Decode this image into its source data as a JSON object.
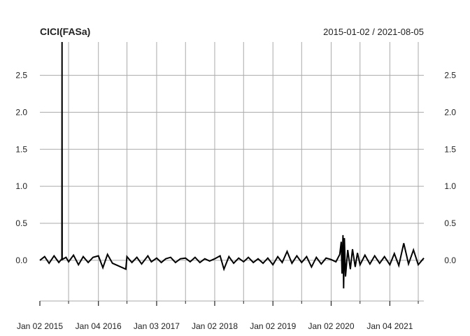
{
  "chart_data": {
    "type": "line",
    "title": "CICI(FASa)",
    "date_range": "2015-01-02 / 2021-08-05",
    "x_start": "2015-01-02",
    "x_end": "2021-08-05",
    "ylim": [
      -0.55,
      2.95
    ],
    "y_ticks": [
      0.0,
      0.5,
      1.0,
      1.5,
      2.0,
      2.5
    ],
    "y_tick_labels": [
      "0.0",
      "0.5",
      "1.0",
      "1.5",
      "2.0",
      "2.5"
    ],
    "x_tick_labels": [
      "Jan 02 2015",
      "Jan 04 2016",
      "Jan 03 2017",
      "Jan 02 2018",
      "Jan 02 2019",
      "Jan 02 2020",
      "Jan 04 2021"
    ],
    "x_tick_dates": [
      "2015-01-02",
      "2016-01-04",
      "2017-01-03",
      "2018-01-02",
      "2019-01-02",
      "2020-01-02",
      "2021-01-04"
    ],
    "x_minor_dates": [
      "2015-07-01",
      "2016-07-01",
      "2017-07-03",
      "2018-07-02",
      "2019-07-01",
      "2020-07-01",
      "2021-07-01"
    ],
    "grid": true,
    "colors": {
      "series": "#000000",
      "grid": "#aaaaaa",
      "text": "#222222"
    },
    "series": [
      {
        "x": [
          "2015-01-02",
          "2015-02-01",
          "2015-03-01",
          "2015-04-01",
          "2015-05-01",
          "2015-05-20",
          "2015-05-21",
          "2015-05-22",
          "2015-06-15",
          "2015-07-01",
          "2015-08-01",
          "2015-09-01",
          "2015-10-01",
          "2015-11-01",
          "2015-12-01",
          "2016-01-04",
          "2016-02-01",
          "2016-03-01",
          "2016-04-01",
          "2016-06-24",
          "2016-07-01",
          "2016-08-01",
          "2016-09-01",
          "2016-10-01",
          "2016-11-09",
          "2016-12-01",
          "2017-01-03",
          "2017-02-01",
          "2017-03-01",
          "2017-04-01",
          "2017-05-01",
          "2017-06-01",
          "2017-07-03",
          "2017-08-01",
          "2017-09-01",
          "2017-10-01",
          "2017-11-01",
          "2017-12-01",
          "2018-01-02",
          "2018-02-05",
          "2018-03-01",
          "2018-04-01",
          "2018-05-01",
          "2018-06-01",
          "2018-07-02",
          "2018-08-01",
          "2018-09-01",
          "2018-10-01",
          "2018-11-01",
          "2018-12-01",
          "2019-01-02",
          "2019-02-01",
          "2019-03-01",
          "2019-04-01",
          "2019-05-01",
          "2019-06-01",
          "2019-07-01",
          "2019-08-01",
          "2019-09-01",
          "2019-10-01",
          "2019-11-01",
          "2019-12-01",
          "2020-01-02",
          "2020-02-01",
          "2020-02-25",
          "2020-03-05",
          "2020-03-10",
          "2020-03-16",
          "2020-03-20",
          "2020-03-25",
          "2020-04-01",
          "2020-04-15",
          "2020-05-01",
          "2020-05-15",
          "2020-06-01",
          "2020-06-15",
          "2020-07-01",
          "2020-08-01",
          "2020-09-01",
          "2020-10-01",
          "2020-11-01",
          "2020-12-01",
          "2021-01-04",
          "2021-02-01",
          "2021-03-01",
          "2021-04-01",
          "2021-05-01",
          "2021-06-01",
          "2021-07-01",
          "2021-08-05"
        ],
        "y": [
          0.0,
          0.05,
          -0.04,
          0.06,
          -0.03,
          0.02,
          2.95,
          0.01,
          0.04,
          -0.02,
          0.07,
          -0.06,
          0.05,
          -0.03,
          0.04,
          0.06,
          -0.1,
          0.08,
          -0.04,
          -0.12,
          0.05,
          -0.03,
          0.04,
          -0.05,
          0.06,
          -0.02,
          0.03,
          -0.03,
          0.02,
          0.04,
          -0.03,
          0.02,
          0.03,
          -0.02,
          0.04,
          -0.03,
          0.02,
          -0.01,
          0.02,
          0.06,
          -0.12,
          0.05,
          -0.04,
          0.03,
          -0.02,
          0.04,
          -0.03,
          0.02,
          -0.04,
          0.03,
          -0.06,
          0.05,
          -0.03,
          0.12,
          -0.04,
          0.06,
          -0.03,
          0.05,
          -0.09,
          0.04,
          -0.05,
          0.03,
          0.01,
          -0.02,
          0.08,
          0.25,
          -0.18,
          0.34,
          -0.38,
          0.3,
          -0.22,
          0.14,
          -0.12,
          0.15,
          -0.09,
          0.1,
          -0.06,
          0.07,
          -0.05,
          0.06,
          -0.04,
          0.05,
          -0.06,
          0.09,
          -0.07,
          0.23,
          -0.05,
          0.14,
          -0.06,
          0.03
        ]
      }
    ]
  }
}
